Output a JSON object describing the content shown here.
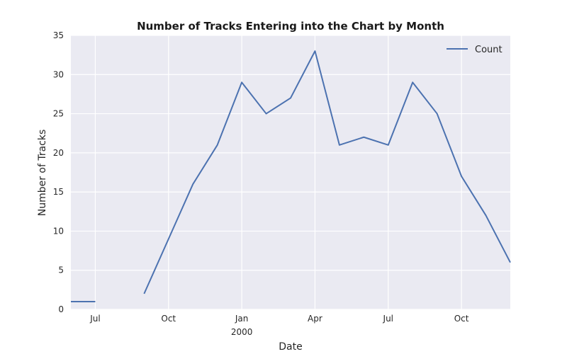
{
  "chart_data": {
    "type": "line",
    "title": "Number of Tracks Entering into the Chart by Month",
    "xlabel": "Date",
    "ylabel": "Number of Tracks",
    "ylim": [
      0,
      35
    ],
    "yticks": [
      0,
      5,
      10,
      15,
      20,
      25,
      30,
      35
    ],
    "xlim": [
      "1999-06",
      "2000-12"
    ],
    "xticks": [
      {
        "date": "1999-07",
        "label": "Jul"
      },
      {
        "date": "1999-10",
        "label": "Oct"
      },
      {
        "date": "2000-01",
        "label": "Jan",
        "sublabel": "2000"
      },
      {
        "date": "2000-04",
        "label": "Apr"
      },
      {
        "date": "2000-07",
        "label": "Jul"
      },
      {
        "date": "2000-10",
        "label": "Oct"
      }
    ],
    "grid": true,
    "legend": "top-right",
    "series": [
      {
        "name": "Count",
        "color": "#4c72b0",
        "segments": [
          [
            {
              "x": "1999-06",
              "y": 1
            },
            {
              "x": "1999-07",
              "y": 1
            }
          ],
          [
            {
              "x": "1999-09",
              "y": 2
            },
            {
              "x": "1999-10",
              "y": 9
            },
            {
              "x": "1999-11",
              "y": 16
            },
            {
              "x": "1999-12",
              "y": 21
            },
            {
              "x": "2000-01",
              "y": 29
            },
            {
              "x": "2000-02",
              "y": 25
            },
            {
              "x": "2000-03",
              "y": 27
            },
            {
              "x": "2000-04",
              "y": 33
            },
            {
              "x": "2000-05",
              "y": 21
            },
            {
              "x": "2000-06",
              "y": 22
            },
            {
              "x": "2000-07",
              "y": 21
            },
            {
              "x": "2000-08",
              "y": 29
            },
            {
              "x": "2000-09",
              "y": 25
            },
            {
              "x": "2000-10",
              "y": 17
            },
            {
              "x": "2000-11",
              "y": 12
            },
            {
              "x": "2000-12",
              "y": 6
            }
          ]
        ]
      }
    ]
  }
}
